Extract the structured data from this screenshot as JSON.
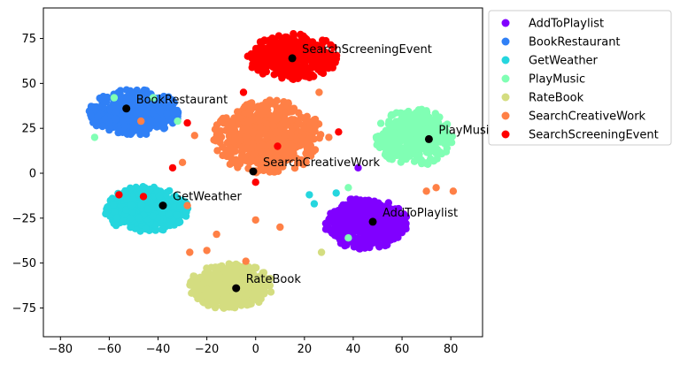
{
  "chart_data": {
    "type": "scatter",
    "title": "",
    "xlabel": "",
    "ylabel": "",
    "xlim": [
      -87,
      93
    ],
    "ylim": [
      -91,
      92
    ],
    "xticks": [
      -80,
      -60,
      -40,
      -20,
      0,
      20,
      40,
      60,
      80
    ],
    "yticks": [
      -75,
      -50,
      -25,
      0,
      25,
      50,
      75
    ],
    "xtick_labels": [
      "−80",
      "−60",
      "−40",
      "−20",
      "0",
      "20",
      "40",
      "60",
      "80"
    ],
    "ytick_labels": [
      "−75",
      "−50",
      "−25",
      "0",
      "25",
      "50",
      "75"
    ],
    "grid": false,
    "legend_position": "outside-top-right",
    "series": [
      {
        "name": "AddToPlaylist",
        "color": "#8000ff",
        "center": [
          45,
          -28
        ],
        "spread": [
          11,
          9
        ],
        "count": 500
      },
      {
        "name": "BookRestaurant",
        "color": "#3080f6",
        "center": [
          -50,
          34
        ],
        "spread": [
          12,
          8
        ],
        "count": 550
      },
      {
        "name": "GetWeather",
        "color": "#25d6de",
        "center": [
          -45,
          -20
        ],
        "spread": [
          11,
          8
        ],
        "count": 550
      },
      {
        "name": "PlayMusic",
        "color": "#80ffb4",
        "center": [
          65,
          20
        ],
        "spread": [
          10,
          10
        ],
        "count": 380
      },
      {
        "name": "RateBook",
        "color": "#d4dd80",
        "center": [
          -10,
          -63
        ],
        "spread": [
          11,
          8
        ],
        "count": 450
      },
      {
        "name": "SearchCreativeWork",
        "color": "#ff8046",
        "center": [
          5,
          20
        ],
        "spread": [
          14,
          13
        ],
        "count": 600
      },
      {
        "name": "SearchScreeningEvent",
        "color": "#ff0000",
        "center": [
          15,
          65
        ],
        "spread": [
          12,
          8
        ],
        "count": 450
      }
    ],
    "centroids": [
      {
        "label": "SearchScreeningEvent",
        "x": 15,
        "y": 64
      },
      {
        "label": "BookRestaurant",
        "x": -53,
        "y": 36
      },
      {
        "label": "PlayMusic",
        "x": 71,
        "y": 19
      },
      {
        "label": "SearchCreativeWork",
        "x": -1,
        "y": 1
      },
      {
        "label": "GetWeather",
        "x": -38,
        "y": -18
      },
      {
        "label": "AddToPlaylist",
        "x": 48,
        "y": -27
      },
      {
        "label": "RateBook",
        "x": -8,
        "y": -64
      }
    ],
    "outliers": [
      {
        "x": -47,
        "y": 29,
        "color": "#ff8046"
      },
      {
        "x": -28,
        "y": 28,
        "color": "#ff0000"
      },
      {
        "x": -25,
        "y": 21,
        "color": "#ff8046"
      },
      {
        "x": -66,
        "y": 20,
        "color": "#80ffb4"
      },
      {
        "x": -58,
        "y": 42,
        "color": "#80ffb4"
      },
      {
        "x": -42,
        "y": 42,
        "color": "#80ffb4"
      },
      {
        "x": -32,
        "y": 29,
        "color": "#80ffb4"
      },
      {
        "x": -56,
        "y": -12,
        "color": "#ff0000"
      },
      {
        "x": -46,
        "y": -13,
        "color": "#ff0000"
      },
      {
        "x": -34,
        "y": 3,
        "color": "#ff0000"
      },
      {
        "x": -30,
        "y": 6,
        "color": "#ff8046"
      },
      {
        "x": -28,
        "y": -18,
        "color": "#ff8046"
      },
      {
        "x": 34,
        "y": 23,
        "color": "#ff0000"
      },
      {
        "x": 30,
        "y": 20,
        "color": "#ff8046"
      },
      {
        "x": 22,
        "y": -12,
        "color": "#25d6de"
      },
      {
        "x": 24,
        "y": -17,
        "color": "#25d6de"
      },
      {
        "x": 33,
        "y": -11,
        "color": "#25d6de"
      },
      {
        "x": 38,
        "y": -8,
        "color": "#80ffb4"
      },
      {
        "x": 38,
        "y": -36,
        "color": "#80ffb4"
      },
      {
        "x": 27,
        "y": -44,
        "color": "#d4dd80"
      },
      {
        "x": -27,
        "y": -44,
        "color": "#ff8046"
      },
      {
        "x": -20,
        "y": -43,
        "color": "#ff8046"
      },
      {
        "x": -16,
        "y": -34,
        "color": "#ff8046"
      },
      {
        "x": -4,
        "y": -49,
        "color": "#ff8046"
      },
      {
        "x": 10,
        "y": -30,
        "color": "#ff8046"
      },
      {
        "x": 0,
        "y": -26,
        "color": "#ff8046"
      },
      {
        "x": 70,
        "y": -10,
        "color": "#ff8046"
      },
      {
        "x": 74,
        "y": -8,
        "color": "#ff8046"
      },
      {
        "x": 81,
        "y": -10,
        "color": "#ff8046"
      },
      {
        "x": 9,
        "y": 15,
        "color": "#ff0000"
      },
      {
        "x": 0,
        "y": -5,
        "color": "#ff0000"
      },
      {
        "x": -5,
        "y": 45,
        "color": "#ff0000"
      },
      {
        "x": 26,
        "y": 45,
        "color": "#ff8046"
      },
      {
        "x": 42,
        "y": 3,
        "color": "#8000ff"
      }
    ]
  }
}
